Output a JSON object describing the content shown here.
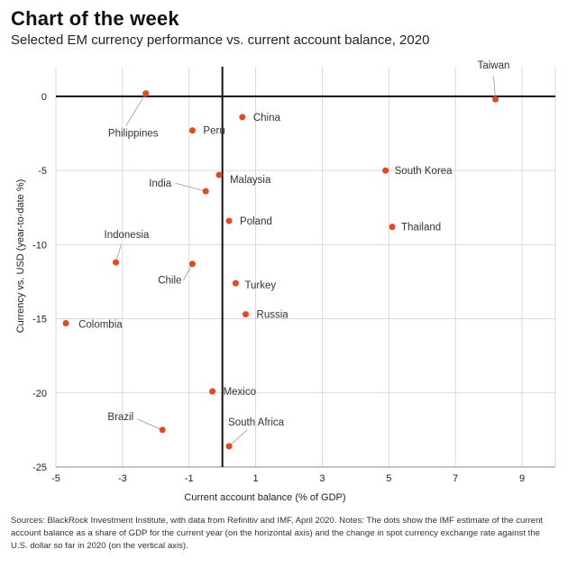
{
  "header": {
    "title": "Chart of the week",
    "subtitle": "Selected EM currency performance vs. current account balance, 2020"
  },
  "footer": {
    "source": "Sources: BlackRock Investment Institute, with data from Refinitiv and IMF, April 2020. Notes: The dots show the IMF estimate of the current account balance as a share of GDP for the current year (on the horizontal axis) and the change in spot currency exchange rate against the U.S. dollar so far in 2020 (on the vertical axis)."
  },
  "colors": {
    "point": "#e8481c",
    "axis_line": "#111111",
    "grid": "#d9d9d9",
    "leader": "#999999",
    "label": "#333333"
  },
  "chart_data": {
    "type": "scatter",
    "xlabel": "Current account balance (% of GDP)",
    "ylabel": "Currency vs. USD (year-to-date %)",
    "xlim": [
      -5,
      10
    ],
    "ylim": [
      -25,
      2
    ],
    "x_ticks": [
      -5,
      -3,
      -1,
      1,
      3,
      5,
      7,
      9
    ],
    "y_ticks": [
      0,
      -5,
      -10,
      -15,
      -20,
      -25
    ],
    "grid": true,
    "points": [
      {
        "label": "Taiwan",
        "x": 8.2,
        "y": -0.2
      },
      {
        "label": "Philippines",
        "x": -2.3,
        "y": 0.2
      },
      {
        "label": "China",
        "x": 0.6,
        "y": -1.4
      },
      {
        "label": "Peru",
        "x": -0.9,
        "y": -2.3
      },
      {
        "label": "South Korea",
        "x": 4.9,
        "y": -5.0
      },
      {
        "label": "Malaysia",
        "x": -0.1,
        "y": -5.3
      },
      {
        "label": "India",
        "x": -0.5,
        "y": -6.4
      },
      {
        "label": "Poland",
        "x": 0.2,
        "y": -8.4
      },
      {
        "label": "Thailand",
        "x": 5.1,
        "y": -8.8
      },
      {
        "label": "Indonesia",
        "x": -3.2,
        "y": -11.2
      },
      {
        "label": "Chile",
        "x": -0.9,
        "y": -11.3
      },
      {
        "label": "Turkey",
        "x": 0.4,
        "y": -12.6
      },
      {
        "label": "Russia",
        "x": 0.7,
        "y": -14.7
      },
      {
        "label": "Colombia",
        "x": -4.7,
        "y": -15.3
      },
      {
        "label": "Mexico",
        "x": -0.3,
        "y": -19.9
      },
      {
        "label": "Brazil",
        "x": -1.8,
        "y": -22.5
      },
      {
        "label": "South Africa",
        "x": 0.2,
        "y": -23.6
      }
    ]
  }
}
